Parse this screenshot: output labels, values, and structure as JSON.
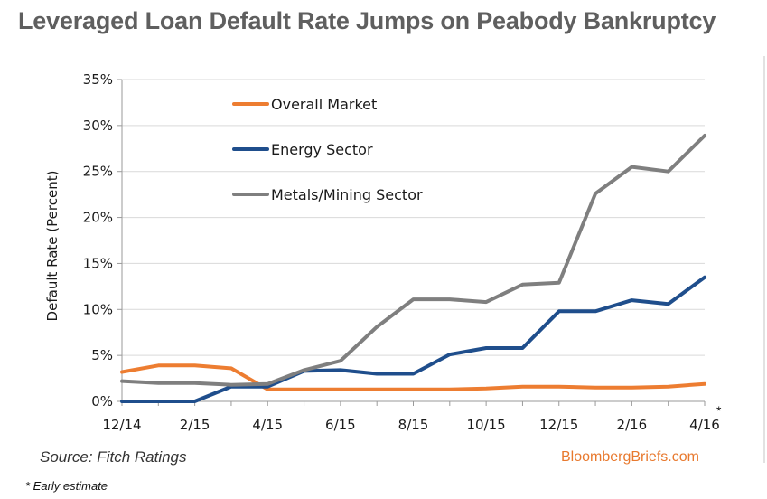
{
  "title": "Leveraged Loan Default Rate Jumps on Peabody Bankruptcy",
  "source": "Source: Fitch Ratings",
  "brand": "BloombergBriefs.com",
  "footnote": "* Early estimate",
  "asterisk": "*",
  "colors": {
    "overall": "#ed7d31",
    "energy": "#1f4e8c",
    "metals": "#7f7f7f",
    "axis": "#9a9a9a"
  },
  "chart_data": {
    "type": "line",
    "title": "Leveraged Loan Default Rate Jumps on Peabody Bankruptcy",
    "xlabel": "",
    "ylabel": "Default Rate (Percent)",
    "ylim": [
      0,
      35
    ],
    "ytick_labels": [
      "0%",
      "5%",
      "10%",
      "15%",
      "20%",
      "25%",
      "30%",
      "35%"
    ],
    "x": [
      "12/14",
      "1/15",
      "2/15",
      "3/15",
      "4/15",
      "5/15",
      "6/15",
      "7/15",
      "8/15",
      "9/15",
      "10/15",
      "11/15",
      "12/15",
      "1/16",
      "2/16",
      "3/16",
      "4/16"
    ],
    "xtick_labels": [
      "12/14",
      "2/15",
      "4/15",
      "6/15",
      "8/15",
      "10/15",
      "12/15",
      "2/16",
      "4/16"
    ],
    "grid": "horizontal",
    "legend": "top-left",
    "series": [
      {
        "name": "Overall Market",
        "color": "#ed7d31",
        "values": [
          3.2,
          3.9,
          3.9,
          3.6,
          1.3,
          1.3,
          1.3,
          1.3,
          1.3,
          1.3,
          1.4,
          1.6,
          1.6,
          1.5,
          1.5,
          1.6,
          1.9
        ]
      },
      {
        "name": "Energy Sector",
        "color": "#1f4e8c",
        "values": [
          0.0,
          0.0,
          0.0,
          1.6,
          1.6,
          3.3,
          3.4,
          3.0,
          3.0,
          5.1,
          5.8,
          5.8,
          9.8,
          9.8,
          11.0,
          10.6,
          13.5
        ]
      },
      {
        "name": "Metals/Mining Sector",
        "color": "#7f7f7f",
        "values": [
          2.2,
          2.0,
          2.0,
          1.8,
          1.9,
          3.4,
          4.4,
          8.1,
          11.1,
          11.1,
          10.8,
          12.7,
          12.9,
          22.6,
          25.5,
          25.0,
          28.9
        ]
      }
    ]
  }
}
